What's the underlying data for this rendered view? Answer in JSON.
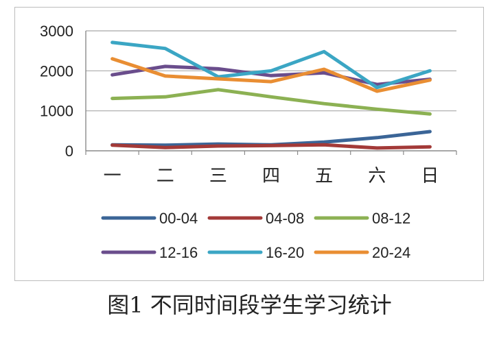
{
  "caption": "图1 不同时间段学生学习统计",
  "chart_data": {
    "type": "line",
    "categories": [
      "一",
      "二",
      "三",
      "四",
      "五",
      "六",
      "日"
    ],
    "ylim": [
      0,
      3000
    ],
    "yticks": [
      0,
      1000,
      2000,
      3000
    ],
    "ytick_labels": [
      "0",
      "1000",
      "2000",
      "3000"
    ],
    "grid": true,
    "legend_position": "bottom",
    "series": [
      {
        "name": "00-04",
        "color": "#3B6597",
        "values": [
          150,
          140,
          170,
          150,
          220,
          330,
          480
        ]
      },
      {
        "name": "04-08",
        "color": "#A33A38",
        "values": [
          140,
          80,
          120,
          130,
          150,
          70,
          100
        ]
      },
      {
        "name": "08-12",
        "color": "#8CB153",
        "values": [
          1310,
          1350,
          1530,
          1350,
          1180,
          1040,
          920
        ]
      },
      {
        "name": "12-16",
        "color": "#6A4D8C",
        "values": [
          1900,
          2110,
          2050,
          1880,
          1950,
          1660,
          1790
        ]
      },
      {
        "name": "16-20",
        "color": "#3BA6C4",
        "values": [
          2710,
          2560,
          1850,
          2000,
          2480,
          1580,
          2000
        ]
      },
      {
        "name": "20-24",
        "color": "#E98E33",
        "values": [
          2300,
          1870,
          1800,
          1730,
          2040,
          1490,
          1770
        ]
      }
    ]
  }
}
